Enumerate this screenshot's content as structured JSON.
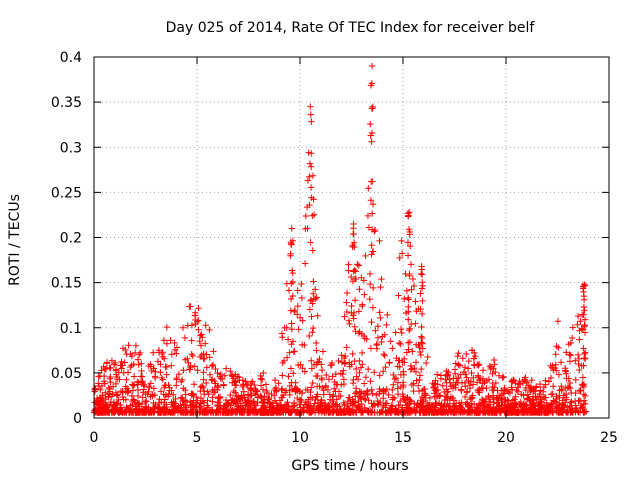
{
  "chart_data": {
    "type": "scatter",
    "title": "Day 025 of 2014, Rate Of TEC Index for receiver belf",
    "xlabel": "GPS time / hours",
    "ylabel": "ROTI / TECUs",
    "xlim": [
      0,
      25
    ],
    "ylim": [
      0,
      0.4
    ],
    "xticks": [
      0,
      5,
      10,
      15,
      20,
      25
    ],
    "yticks": [
      0,
      0.05,
      0.1,
      0.15,
      0.2,
      0.25,
      0.3,
      0.35,
      0.4
    ],
    "xtick_labels": [
      "0",
      "5",
      "10",
      "15",
      "20",
      "25"
    ],
    "ytick_labels": [
      "0",
      "0.05",
      "0.1",
      "0.15",
      "0.2",
      "0.25",
      "0.3",
      "0.35",
      "0.4"
    ],
    "grid": true,
    "marker": "+",
    "color": "#ff0000",
    "x_range_of_data": [
      0,
      23.9
    ],
    "envelope": {
      "x": [
        0.0,
        0.5,
        1.0,
        1.5,
        2.0,
        2.5,
        3.0,
        3.5,
        4.0,
        4.5,
        5.0,
        5.5,
        6.0,
        6.5,
        7.0,
        7.5,
        8.0,
        8.5,
        9.0,
        9.5,
        10.0,
        10.5,
        11.0,
        11.5,
        12.0,
        12.5,
        13.0,
        13.5,
        14.0,
        14.5,
        15.0,
        15.5,
        16.0,
        16.5,
        17.0,
        17.5,
        18.0,
        18.5,
        19.0,
        19.5,
        20.0,
        20.5,
        21.0,
        21.5,
        22.0,
        22.5,
        23.0,
        23.5,
        23.9
      ],
      "y": [
        0.035,
        0.065,
        0.07,
        0.09,
        0.085,
        0.07,
        0.08,
        0.125,
        0.08,
        0.12,
        0.135,
        0.11,
        0.05,
        0.06,
        0.05,
        0.04,
        0.05,
        0.05,
        0.06,
        0.21,
        0.13,
        0.34,
        0.08,
        0.06,
        0.07,
        0.215,
        0.16,
        0.39,
        0.15,
        0.08,
        0.23,
        0.17,
        0.09,
        0.05,
        0.05,
        0.06,
        0.1,
        0.07,
        0.05,
        0.07,
        0.04,
        0.045,
        0.05,
        0.035,
        0.045,
        0.11,
        0.08,
        0.13,
        0.15
      ]
    },
    "spikes": [
      {
        "x": 9.6,
        "y": 0.21
      },
      {
        "x": 10.5,
        "y": 0.345
      },
      {
        "x": 12.6,
        "y": 0.215
      },
      {
        "x": 13.5,
        "y": 0.39
      },
      {
        "x": 15.3,
        "y": 0.228
      },
      {
        "x": 15.9,
        "y": 0.168
      },
      {
        "x": 23.8,
        "y": 0.148
      }
    ]
  }
}
